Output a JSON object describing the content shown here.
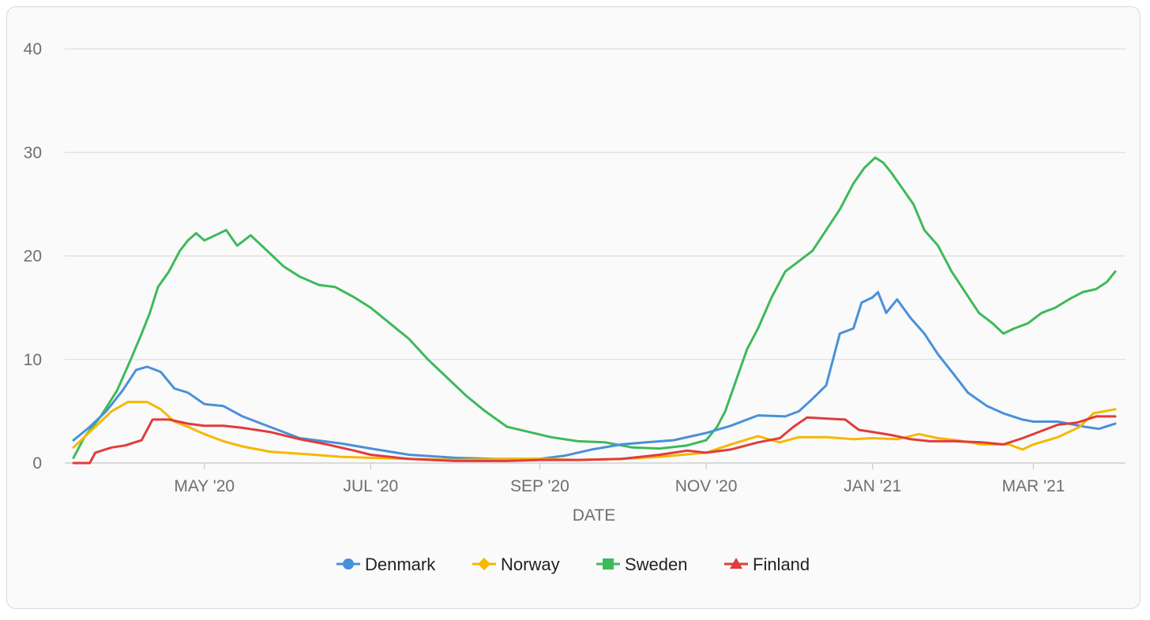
{
  "chart_data": {
    "type": "line",
    "xlabel": "DATE",
    "ylabel": "",
    "ylim": [
      0,
      40
    ],
    "xlim": [
      "2020-03-14",
      "2021-03-31"
    ],
    "y_ticks": [
      "0",
      "10",
      "20",
      "30",
      "40"
    ],
    "x_ticks": [
      {
        "label": "MAY '20",
        "date": "2020-05-01"
      },
      {
        "label": "JUL '20",
        "date": "2020-07-01"
      },
      {
        "label": "SEP '20",
        "date": "2020-09-01"
      },
      {
        "label": "NOV '20",
        "date": "2020-11-01"
      },
      {
        "label": "JAN '21",
        "date": "2021-01-01"
      },
      {
        "label": "MAR '21",
        "date": "2021-03-01"
      }
    ],
    "grid": true,
    "legend_position": "bottom",
    "series": [
      {
        "name": "Denmark",
        "color": "#4a90d9",
        "marker": "circle",
        "points": [
          [
            "2020-03-14",
            2.2
          ],
          [
            "2020-03-20",
            3.5
          ],
          [
            "2020-03-26",
            5.0
          ],
          [
            "2020-04-01",
            7.0
          ],
          [
            "2020-04-06",
            9.0
          ],
          [
            "2020-04-10",
            9.3
          ],
          [
            "2020-04-15",
            8.8
          ],
          [
            "2020-04-20",
            7.2
          ],
          [
            "2020-04-25",
            6.8
          ],
          [
            "2020-05-01",
            5.7
          ],
          [
            "2020-05-08",
            5.5
          ],
          [
            "2020-05-15",
            4.5
          ],
          [
            "2020-05-25",
            3.5
          ],
          [
            "2020-06-05",
            2.4
          ],
          [
            "2020-06-20",
            1.9
          ],
          [
            "2020-07-01",
            1.4
          ],
          [
            "2020-07-15",
            0.8
          ],
          [
            "2020-08-01",
            0.5
          ],
          [
            "2020-08-15",
            0.4
          ],
          [
            "2020-09-01",
            0.4
          ],
          [
            "2020-09-10",
            0.7
          ],
          [
            "2020-09-20",
            1.3
          ],
          [
            "2020-10-01",
            1.8
          ],
          [
            "2020-10-10",
            2.0
          ],
          [
            "2020-10-20",
            2.2
          ],
          [
            "2020-11-01",
            2.9
          ],
          [
            "2020-11-10",
            3.6
          ],
          [
            "2020-11-20",
            4.6
          ],
          [
            "2020-11-30",
            4.5
          ],
          [
            "2020-12-05",
            5.0
          ],
          [
            "2020-12-10",
            6.2
          ],
          [
            "2020-12-15",
            7.5
          ],
          [
            "2020-12-20",
            12.5
          ],
          [
            "2020-12-25",
            13.0
          ],
          [
            "2020-12-28",
            15.5
          ],
          [
            "2021-01-01",
            16.0
          ],
          [
            "2021-01-03",
            16.5
          ],
          [
            "2021-01-06",
            14.5
          ],
          [
            "2021-01-10",
            15.8
          ],
          [
            "2021-01-15",
            14.0
          ],
          [
            "2021-01-20",
            12.5
          ],
          [
            "2021-01-25",
            10.5
          ],
          [
            "2021-01-31",
            8.5
          ],
          [
            "2021-02-05",
            6.8
          ],
          [
            "2021-02-12",
            5.5
          ],
          [
            "2021-02-18",
            4.8
          ],
          [
            "2021-02-25",
            4.2
          ],
          [
            "2021-03-01",
            4.0
          ],
          [
            "2021-03-10",
            4.0
          ],
          [
            "2021-03-20",
            3.5
          ],
          [
            "2021-03-25",
            3.3
          ],
          [
            "2021-03-31",
            3.8
          ]
        ]
      },
      {
        "name": "Norway",
        "color": "#f5b800",
        "marker": "diamond",
        "points": [
          [
            "2020-03-14",
            1.5
          ],
          [
            "2020-03-20",
            3.0
          ],
          [
            "2020-03-28",
            5.0
          ],
          [
            "2020-04-03",
            5.9
          ],
          [
            "2020-04-10",
            5.9
          ],
          [
            "2020-04-15",
            5.2
          ],
          [
            "2020-04-20",
            4.0
          ],
          [
            "2020-04-25",
            3.5
          ],
          [
            "2020-05-01",
            2.8
          ],
          [
            "2020-05-08",
            2.1
          ],
          [
            "2020-05-15",
            1.6
          ],
          [
            "2020-05-25",
            1.1
          ],
          [
            "2020-06-05",
            0.9
          ],
          [
            "2020-06-20",
            0.6
          ],
          [
            "2020-07-01",
            0.5
          ],
          [
            "2020-07-15",
            0.4
          ],
          [
            "2020-08-01",
            0.3
          ],
          [
            "2020-08-20",
            0.4
          ],
          [
            "2020-09-01",
            0.4
          ],
          [
            "2020-09-15",
            0.3
          ],
          [
            "2020-10-01",
            0.4
          ],
          [
            "2020-10-15",
            0.6
          ],
          [
            "2020-11-01",
            1.0
          ],
          [
            "2020-11-10",
            1.8
          ],
          [
            "2020-11-20",
            2.6
          ],
          [
            "2020-11-28",
            2.0
          ],
          [
            "2020-12-05",
            2.5
          ],
          [
            "2020-12-15",
            2.5
          ],
          [
            "2020-12-25",
            2.3
          ],
          [
            "2021-01-01",
            2.4
          ],
          [
            "2021-01-10",
            2.3
          ],
          [
            "2021-01-18",
            2.8
          ],
          [
            "2021-01-25",
            2.4
          ],
          [
            "2021-02-01",
            2.2
          ],
          [
            "2021-02-10",
            1.8
          ],
          [
            "2021-02-20",
            1.8
          ],
          [
            "2021-02-25",
            1.3
          ],
          [
            "2021-03-01",
            1.8
          ],
          [
            "2021-03-10",
            2.5
          ],
          [
            "2021-03-18",
            3.5
          ],
          [
            "2021-03-23",
            4.8
          ],
          [
            "2021-03-31",
            5.2
          ]
        ]
      },
      {
        "name": "Sweden",
        "color": "#3dba5a",
        "marker": "square",
        "points": [
          [
            "2020-03-14",
            0.5
          ],
          [
            "2020-03-18",
            2.5
          ],
          [
            "2020-03-24",
            4.5
          ],
          [
            "2020-03-30",
            7.0
          ],
          [
            "2020-04-04",
            10.0
          ],
          [
            "2020-04-08",
            12.5
          ],
          [
            "2020-04-11",
            14.5
          ],
          [
            "2020-04-14",
            17.0
          ],
          [
            "2020-04-18",
            18.5
          ],
          [
            "2020-04-22",
            20.5
          ],
          [
            "2020-04-25",
            21.5
          ],
          [
            "2020-04-28",
            22.2
          ],
          [
            "2020-05-01",
            21.5
          ],
          [
            "2020-05-05",
            22.0
          ],
          [
            "2020-05-09",
            22.5
          ],
          [
            "2020-05-13",
            21.0
          ],
          [
            "2020-05-18",
            22.0
          ],
          [
            "2020-05-24",
            20.5
          ],
          [
            "2020-05-30",
            19.0
          ],
          [
            "2020-06-05",
            18.0
          ],
          [
            "2020-06-12",
            17.2
          ],
          [
            "2020-06-18",
            17.0
          ],
          [
            "2020-06-25",
            16.0
          ],
          [
            "2020-07-01",
            15.0
          ],
          [
            "2020-07-08",
            13.5
          ],
          [
            "2020-07-15",
            12.0
          ],
          [
            "2020-07-22",
            10.0
          ],
          [
            "2020-07-30",
            8.0
          ],
          [
            "2020-08-05",
            6.5
          ],
          [
            "2020-08-12",
            5.0
          ],
          [
            "2020-08-20",
            3.5
          ],
          [
            "2020-08-28",
            3.0
          ],
          [
            "2020-09-05",
            2.5
          ],
          [
            "2020-09-15",
            2.1
          ],
          [
            "2020-09-25",
            2.0
          ],
          [
            "2020-10-05",
            1.5
          ],
          [
            "2020-10-15",
            1.4
          ],
          [
            "2020-10-25",
            1.7
          ],
          [
            "2020-11-01",
            2.2
          ],
          [
            "2020-11-05",
            3.5
          ],
          [
            "2020-11-08",
            5.0
          ],
          [
            "2020-11-12",
            8.0
          ],
          [
            "2020-11-16",
            11.0
          ],
          [
            "2020-11-20",
            13.0
          ],
          [
            "2020-11-25",
            16.0
          ],
          [
            "2020-11-30",
            18.5
          ],
          [
            "2020-12-05",
            19.5
          ],
          [
            "2020-12-10",
            20.5
          ],
          [
            "2020-12-15",
            22.5
          ],
          [
            "2020-12-20",
            24.5
          ],
          [
            "2020-12-25",
            27.0
          ],
          [
            "2020-12-29",
            28.5
          ],
          [
            "2021-01-02",
            29.5
          ],
          [
            "2021-01-05",
            29.0
          ],
          [
            "2021-01-08",
            28.0
          ],
          [
            "2021-01-12",
            26.5
          ],
          [
            "2021-01-16",
            25.0
          ],
          [
            "2021-01-20",
            22.5
          ],
          [
            "2021-01-25",
            21.0
          ],
          [
            "2021-01-30",
            18.5
          ],
          [
            "2021-02-04",
            16.5
          ],
          [
            "2021-02-09",
            14.5
          ],
          [
            "2021-02-14",
            13.5
          ],
          [
            "2021-02-18",
            12.5
          ],
          [
            "2021-02-22",
            13.0
          ],
          [
            "2021-02-27",
            13.5
          ],
          [
            "2021-03-04",
            14.5
          ],
          [
            "2021-03-09",
            15.0
          ],
          [
            "2021-03-14",
            15.8
          ],
          [
            "2021-03-19",
            16.5
          ],
          [
            "2021-03-24",
            16.8
          ],
          [
            "2021-03-28",
            17.5
          ],
          [
            "2021-03-31",
            18.5
          ]
        ]
      },
      {
        "name": "Finland",
        "color": "#e03c3c",
        "marker": "triangle",
        "points": [
          [
            "2020-03-14",
            0.0
          ],
          [
            "2020-03-20",
            0.0
          ],
          [
            "2020-03-22",
            1.0
          ],
          [
            "2020-03-28",
            1.5
          ],
          [
            "2020-04-02",
            1.7
          ],
          [
            "2020-04-08",
            2.2
          ],
          [
            "2020-04-12",
            4.2
          ],
          [
            "2020-04-18",
            4.2
          ],
          [
            "2020-04-25",
            3.8
          ],
          [
            "2020-05-01",
            3.6
          ],
          [
            "2020-05-08",
            3.6
          ],
          [
            "2020-05-15",
            3.4
          ],
          [
            "2020-05-25",
            3.0
          ],
          [
            "2020-06-05",
            2.3
          ],
          [
            "2020-06-15",
            1.8
          ],
          [
            "2020-06-25",
            1.2
          ],
          [
            "2020-07-01",
            0.8
          ],
          [
            "2020-07-15",
            0.4
          ],
          [
            "2020-08-01",
            0.2
          ],
          [
            "2020-08-20",
            0.2
          ],
          [
            "2020-09-01",
            0.3
          ],
          [
            "2020-09-15",
            0.3
          ],
          [
            "2020-10-01",
            0.4
          ],
          [
            "2020-10-15",
            0.8
          ],
          [
            "2020-10-25",
            1.2
          ],
          [
            "2020-11-01",
            1.0
          ],
          [
            "2020-11-10",
            1.3
          ],
          [
            "2020-11-20",
            2.0
          ],
          [
            "2020-11-28",
            2.4
          ],
          [
            "2020-12-03",
            3.5
          ],
          [
            "2020-12-08",
            4.4
          ],
          [
            "2020-12-15",
            4.3
          ],
          [
            "2020-12-22",
            4.2
          ],
          [
            "2020-12-27",
            3.2
          ],
          [
            "2021-01-01",
            3.0
          ],
          [
            "2021-01-08",
            2.7
          ],
          [
            "2021-01-15",
            2.3
          ],
          [
            "2021-01-22",
            2.1
          ],
          [
            "2021-01-31",
            2.1
          ],
          [
            "2021-02-10",
            2.0
          ],
          [
            "2021-02-18",
            1.8
          ],
          [
            "2021-02-25",
            2.4
          ],
          [
            "2021-03-03",
            3.0
          ],
          [
            "2021-03-10",
            3.7
          ],
          [
            "2021-03-17",
            3.9
          ],
          [
            "2021-03-24",
            4.5
          ],
          [
            "2021-03-31",
            4.5
          ]
        ]
      }
    ]
  }
}
